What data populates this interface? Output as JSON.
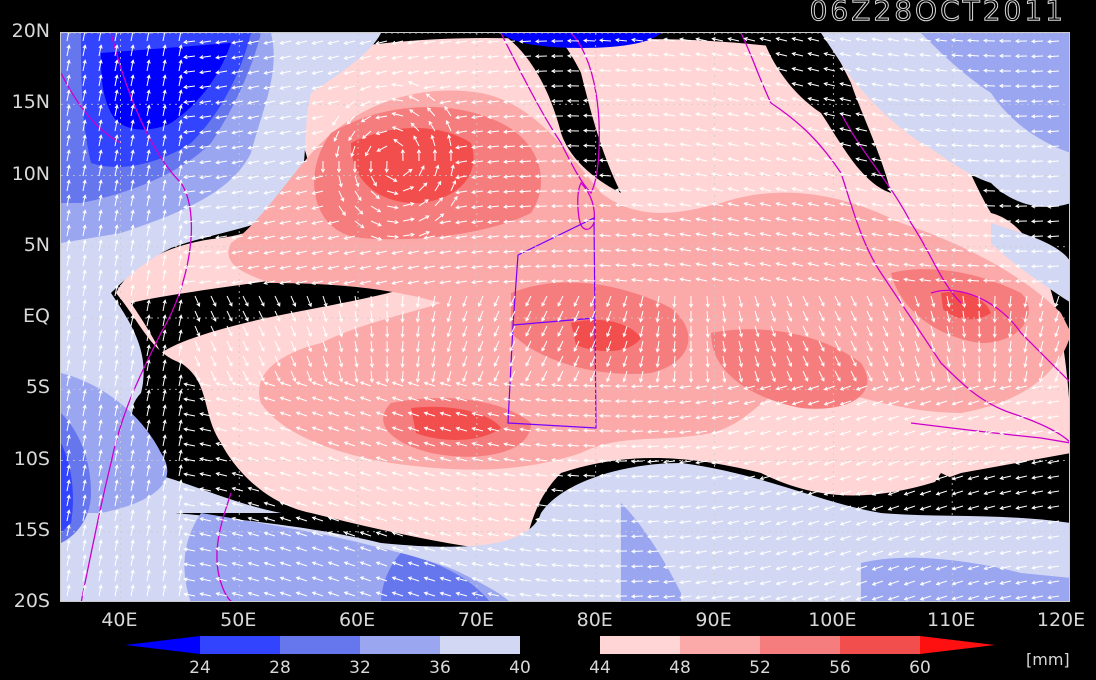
{
  "timestamp": "06Z28OCT2011",
  "map": {
    "lon_range": [
      35,
      120
    ],
    "lat_range": [
      -20,
      20
    ],
    "field": "precipitable water",
    "overlay": "wind vectors",
    "coastline_color": "#cc00cc",
    "box_color": "#7700ff"
  },
  "axes": {
    "lat_ticks": [
      {
        "value": 20,
        "label": "20N"
      },
      {
        "value": 15,
        "label": "15N"
      },
      {
        "value": 10,
        "label": "10N"
      },
      {
        "value": 5,
        "label": "5N"
      },
      {
        "value": 0,
        "label": "EQ"
      },
      {
        "value": -5,
        "label": "5S"
      },
      {
        "value": -10,
        "label": "10S"
      },
      {
        "value": -15,
        "label": "15S"
      },
      {
        "value": -20,
        "label": "20S"
      }
    ],
    "lon_ticks": [
      {
        "value": 40,
        "label": "40E"
      },
      {
        "value": 50,
        "label": "50E"
      },
      {
        "value": 60,
        "label": "60E"
      },
      {
        "value": 70,
        "label": "70E"
      },
      {
        "value": 80,
        "label": "80E"
      },
      {
        "value": 90,
        "label": "90E"
      },
      {
        "value": 100,
        "label": "100E"
      },
      {
        "value": 110,
        "label": "110E"
      },
      {
        "value": 120,
        "label": "120E"
      }
    ]
  },
  "colorbar": {
    "levels": [
      "24",
      "28",
      "32",
      "36",
      "40",
      "44",
      "48",
      "52",
      "56",
      "60"
    ],
    "colors": [
      "#0000ff",
      "#3344ff",
      "#6677ee",
      "#9aa6f0",
      "#d2d8f4",
      "#000000",
      "#ffd5d5",
      "#fba9a9",
      "#f67d7d",
      "#f24e4e",
      "#ff1010"
    ],
    "units": "[mm]"
  }
}
